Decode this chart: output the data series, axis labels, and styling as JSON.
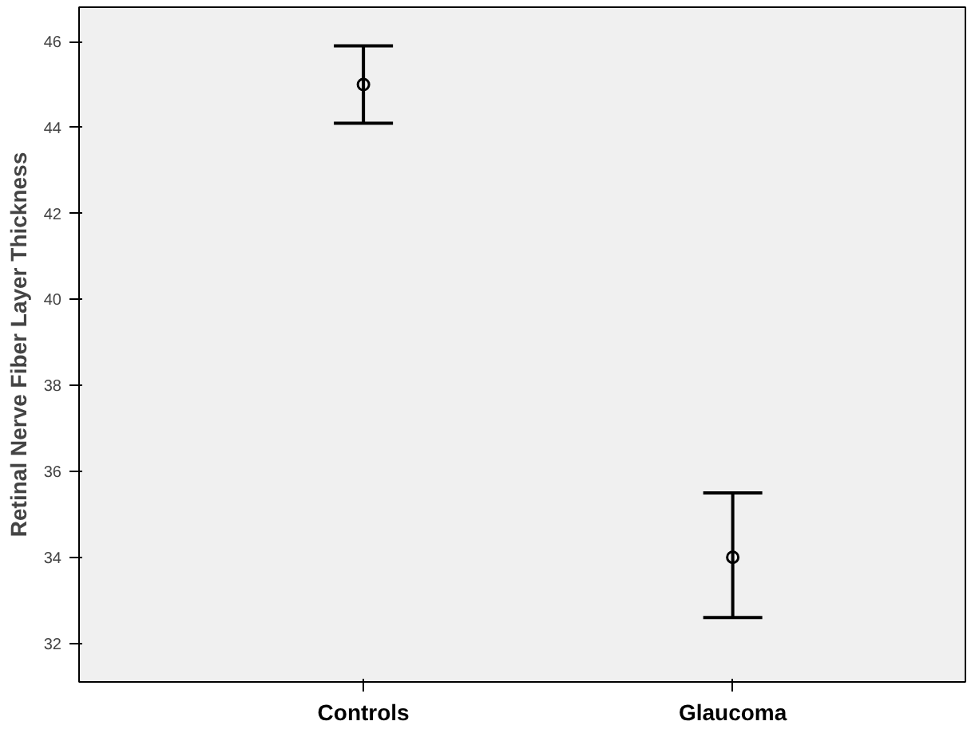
{
  "chart_data": {
    "type": "scatter",
    "ylabel": "Retinal Nerve Fiber Layer Thickness",
    "categories": [
      "Controls",
      "Glaucoma"
    ],
    "values": [
      45.0,
      34.0
    ],
    "errors": [
      [
        44.1,
        45.9
      ],
      [
        32.6,
        35.5
      ]
    ],
    "color": "#000000",
    "marker": "circle",
    "ylim": [
      31.1,
      46.8
    ],
    "yticks": [
      32,
      34,
      36,
      38,
      40,
      42,
      44,
      46
    ],
    "grid": false
  }
}
